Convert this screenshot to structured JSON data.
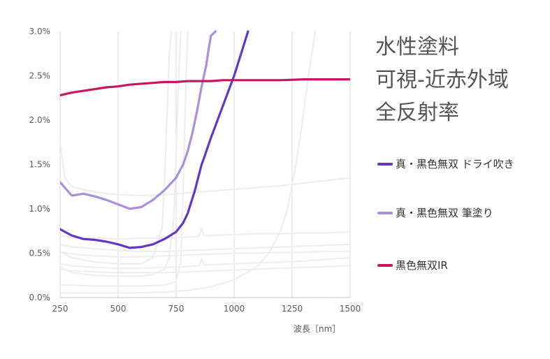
{
  "title_lines": [
    "水性塗料",
    "可視-近赤外域",
    "全反射率"
  ],
  "chart_data": {
    "type": "line",
    "title": "水性塗料 可視-近赤外域 全反射率",
    "xlabel": "波長［nm］",
    "ylabel": "",
    "xlim": [
      250,
      1500
    ],
    "ylim": [
      0,
      3.0
    ],
    "x_ticks": [
      "250",
      "500",
      "750",
      "1000",
      "1250",
      "1500"
    ],
    "y_ticks": [
      "0.0%",
      "0.5%",
      "1.0%",
      "1.5%",
      "2.0%",
      "2.5%",
      "3.0%"
    ],
    "grid": "vertical",
    "legend_position": "right",
    "series": [
      {
        "name": "真・黒色無双 ドライ吹き",
        "color": "#6435c9",
        "x": [
          250,
          300,
          350,
          400,
          450,
          500,
          550,
          600,
          650,
          700,
          750,
          780,
          800,
          830,
          860,
          870,
          880,
          900,
          950,
          1000,
          1030,
          1060
        ],
        "y": [
          0.77,
          0.7,
          0.66,
          0.65,
          0.63,
          0.6,
          0.56,
          0.57,
          0.6,
          0.66,
          0.74,
          0.84,
          0.95,
          1.2,
          1.5,
          1.57,
          1.65,
          1.8,
          2.15,
          2.5,
          2.75,
          3.0
        ]
      },
      {
        "name": "真・黒色無双 筆塗り",
        "color": "#a98fdc",
        "x": [
          250,
          300,
          350,
          400,
          450,
          500,
          550,
          600,
          650,
          700,
          750,
          780,
          800,
          820,
          840,
          860,
          870,
          880,
          890,
          900,
          920
        ],
        "y": [
          1.3,
          1.15,
          1.17,
          1.14,
          1.1,
          1.05,
          1.0,
          1.02,
          1.1,
          1.21,
          1.35,
          1.5,
          1.65,
          1.85,
          2.1,
          2.38,
          2.5,
          2.62,
          2.8,
          2.95,
          3.0
        ]
      },
      {
        "name": "黒色無双IR",
        "color": "#c8155f",
        "x": [
          250,
          300,
          350,
          400,
          450,
          500,
          550,
          600,
          650,
          700,
          750,
          800,
          850,
          900,
          950,
          1000,
          1100,
          1200,
          1300,
          1400,
          1500
        ],
        "y": [
          2.28,
          2.31,
          2.33,
          2.35,
          2.37,
          2.38,
          2.4,
          2.41,
          2.42,
          2.43,
          2.43,
          2.44,
          2.44,
          2.44,
          2.45,
          2.45,
          2.45,
          2.45,
          2.46,
          2.46,
          2.46
        ]
      },
      {
        "color": "#eeeeee",
        "x": [
          250,
          270,
          300,
          400,
          500,
          600,
          700,
          800,
          900,
          1000,
          1100,
          1200,
          1300,
          1400,
          1500
        ],
        "y": [
          1.75,
          1.35,
          1.25,
          1.19,
          1.16,
          1.15,
          1.16,
          1.18,
          1.2,
          1.22,
          1.24,
          1.26,
          1.29,
          1.32,
          1.35
        ]
      },
      {
        "color": "#eeeeee",
        "x": [
          250,
          300,
          400,
          500,
          600,
          700,
          800,
          850,
          860,
          870,
          880,
          900,
          1000,
          1100,
          1200,
          1300,
          1400,
          1500
        ],
        "y": [
          0.7,
          0.68,
          0.67,
          0.66,
          0.67,
          0.67,
          0.68,
          0.69,
          0.78,
          0.7,
          0.7,
          0.7,
          0.71,
          0.72,
          0.72,
          0.73,
          0.73,
          0.74
        ]
      },
      {
        "color": "#eeeeee",
        "x": [
          250,
          300,
          400,
          500,
          600,
          700,
          800,
          900,
          1000,
          1100,
          1200,
          1300,
          1400,
          1500
        ],
        "y": [
          0.6,
          0.57,
          0.55,
          0.53,
          0.52,
          0.52,
          0.53,
          0.54,
          0.55,
          0.56,
          0.57,
          0.58,
          0.59,
          0.6
        ]
      },
      {
        "color": "#eeeeee",
        "x": [
          250,
          300,
          400,
          500,
          600,
          700,
          800,
          900,
          1000,
          1100,
          1200,
          1300,
          1400,
          1500
        ],
        "y": [
          0.52,
          0.49,
          0.47,
          0.46,
          0.46,
          0.47,
          0.48,
          0.49,
          0.5,
          0.5,
          0.51,
          0.51,
          0.52,
          0.52
        ]
      },
      {
        "color": "#eeeeee",
        "x": [
          250,
          300,
          400,
          500,
          600,
          700,
          800,
          850,
          860,
          870,
          900,
          1000,
          1100,
          1200,
          1300,
          1400,
          1500
        ],
        "y": [
          0.38,
          0.36,
          0.34,
          0.33,
          0.33,
          0.34,
          0.35,
          0.36,
          0.43,
          0.37,
          0.37,
          0.38,
          0.39,
          0.4,
          0.41,
          0.43,
          0.45
        ]
      },
      {
        "color": "#eeeeee",
        "x": [
          250,
          300,
          400,
          500,
          600,
          700,
          800,
          900,
          1000,
          1100,
          1200,
          1300,
          1400,
          1500
        ],
        "y": [
          0.32,
          0.3,
          0.29,
          0.28,
          0.28,
          0.28,
          0.29,
          0.3,
          0.31,
          0.32,
          0.33,
          0.34,
          0.35,
          0.36
        ]
      },
      {
        "color": "#eeeeee",
        "x": [
          250,
          300,
          400,
          500,
          600,
          650,
          690,
          700,
          710,
          720,
          730
        ],
        "y": [
          0.52,
          0.45,
          0.4,
          0.38,
          0.38,
          0.45,
          0.8,
          1.3,
          2.0,
          2.7,
          3.0
        ]
      },
      {
        "color": "#eeeeee",
        "x": [
          250,
          300,
          400,
          500,
          600,
          650,
          700,
          720,
          740,
          750,
          760,
          770
        ],
        "y": [
          0.35,
          0.28,
          0.25,
          0.24,
          0.24,
          0.26,
          0.32,
          0.45,
          0.9,
          1.6,
          2.4,
          3.0
        ]
      },
      {
        "color": "#eeeeee",
        "x": [
          250,
          300,
          400,
          500,
          600,
          700,
          750,
          770,
          780,
          790,
          800
        ],
        "y": [
          0.14,
          0.14,
          0.13,
          0.13,
          0.13,
          0.14,
          0.18,
          0.4,
          1.2,
          2.2,
          3.0
        ]
      },
      {
        "color": "#eeeeee",
        "x": [
          250,
          500,
          700,
          800,
          900,
          1000,
          1100,
          1150,
          1200,
          1230,
          1260,
          1290,
          1320,
          1350
        ],
        "y": [
          0.05,
          0.05,
          0.06,
          0.08,
          0.12,
          0.2,
          0.35,
          0.5,
          0.75,
          1.0,
          1.4,
          1.9,
          2.5,
          3.0
        ]
      }
    ]
  }
}
